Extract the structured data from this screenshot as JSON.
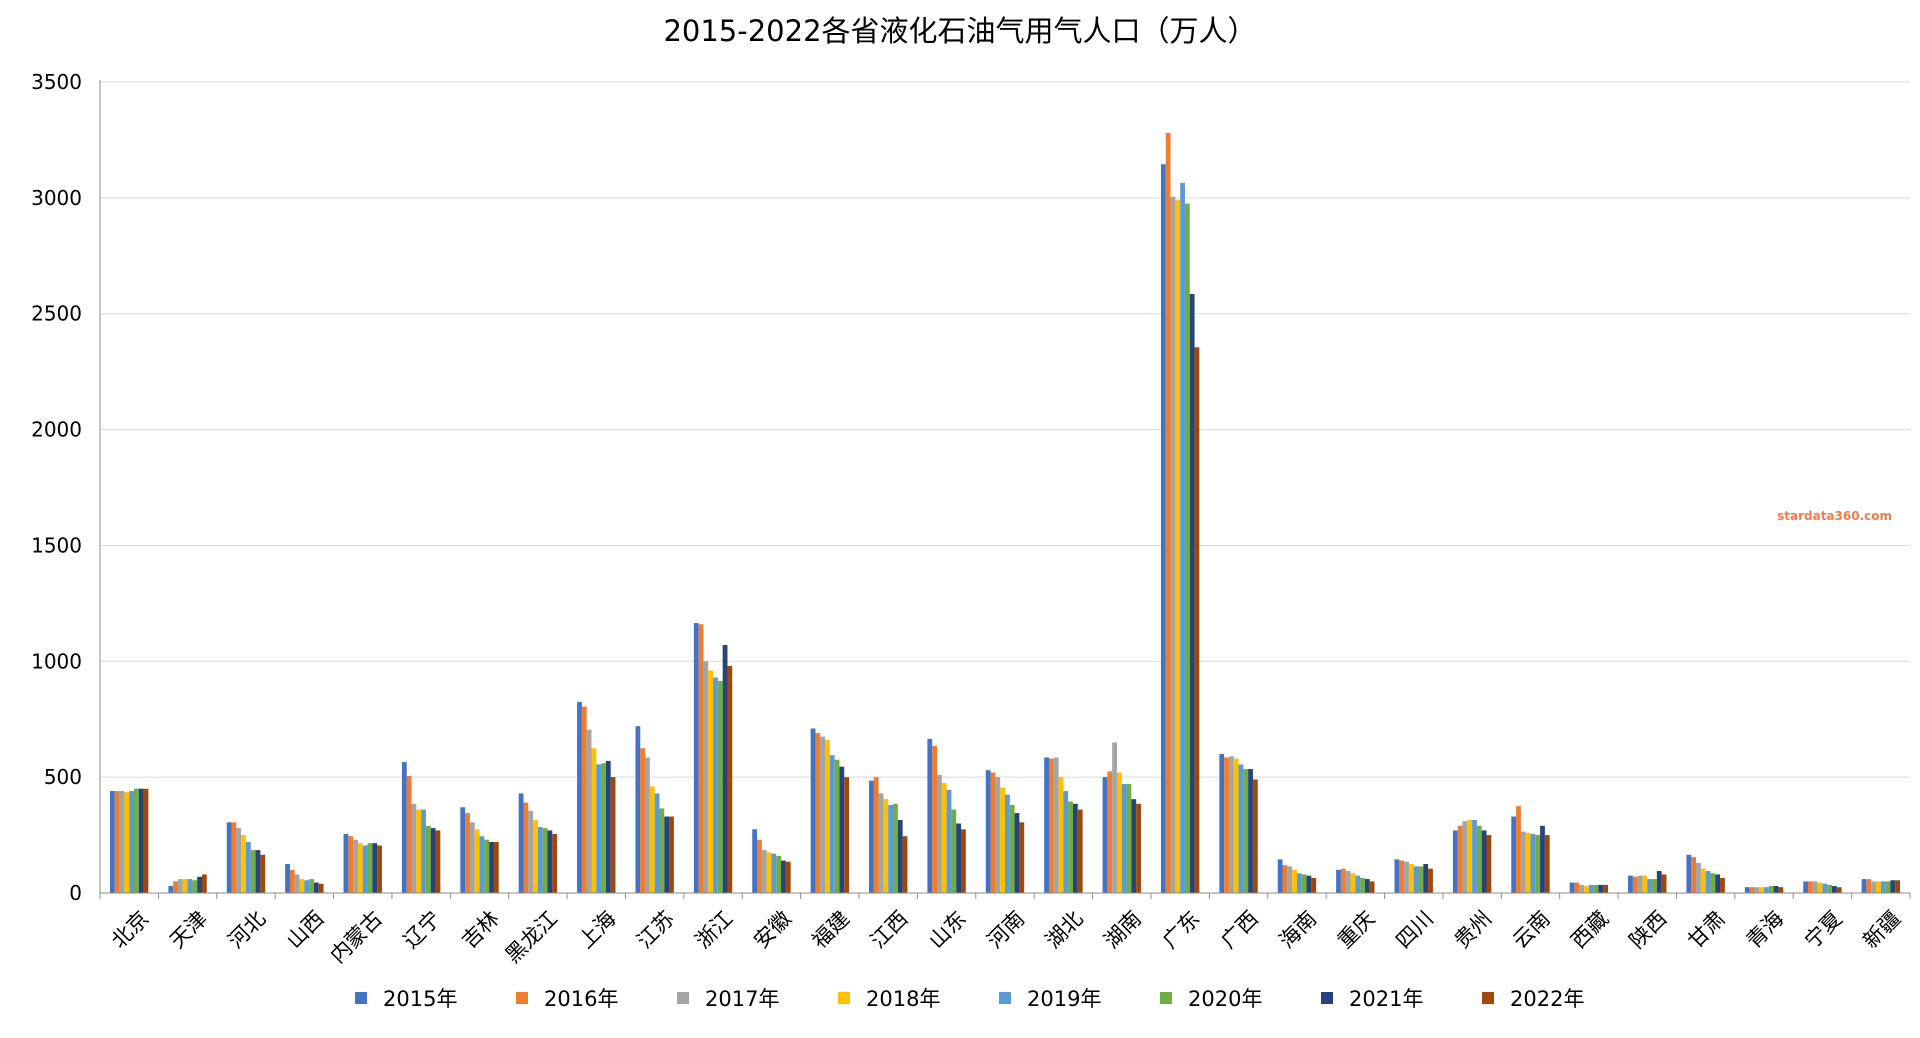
{
  "chart_data": {
    "type": "bar",
    "title": "2015-2022各省液化石油气用气人口（万人）",
    "xlabel": "",
    "ylabel": "",
    "ylim": [
      0,
      3500
    ],
    "yticks": [
      0,
      500,
      1000,
      1500,
      2000,
      2500,
      3000,
      3500
    ],
    "grid": true,
    "legend_position": "bottom",
    "categories": [
      "北京",
      "天津",
      "河北",
      "山西",
      "内蒙古",
      "辽宁",
      "吉林",
      "黑龙江",
      "上海",
      "江苏",
      "浙江",
      "安徽",
      "福建",
      "江西",
      "山东",
      "河南",
      "湖北",
      "湖南",
      "广东",
      "广西",
      "海南",
      "重庆",
      "四川",
      "贵州",
      "云南",
      "西藏",
      "陕西",
      "甘肃",
      "青海",
      "宁夏",
      "新疆"
    ],
    "series": [
      {
        "name": "2015年",
        "color": "#4472c4",
        "values": [
          440,
          30,
          305,
          125,
          255,
          565,
          370,
          430,
          825,
          720,
          1165,
          275,
          710,
          485,
          665,
          530,
          585,
          500,
          3145,
          600,
          145,
          100,
          145,
          270,
          330,
          45,
          75,
          165,
          25,
          50,
          60
        ]
      },
      {
        "name": "2016年",
        "color": "#ed7d31",
        "values": [
          440,
          50,
          305,
          100,
          245,
          505,
          345,
          390,
          805,
          625,
          1160,
          230,
          690,
          500,
          635,
          520,
          580,
          525,
          3280,
          585,
          120,
          105,
          140,
          290,
          375,
          45,
          70,
          155,
          25,
          50,
          60
        ]
      },
      {
        "name": "2017年",
        "color": "#a5a5a5",
        "values": [
          440,
          60,
          280,
          80,
          230,
          385,
          305,
          355,
          705,
          585,
          1000,
          185,
          675,
          430,
          510,
          500,
          585,
          650,
          3005,
          590,
          115,
          95,
          135,
          310,
          265,
          35,
          75,
          130,
          25,
          50,
          50
        ]
      },
      {
        "name": "2018年",
        "color": "#ffc000",
        "values": [
          435,
          60,
          250,
          60,
          215,
          360,
          275,
          315,
          625,
          460,
          960,
          175,
          660,
          405,
          475,
          455,
          500,
          520,
          2990,
          580,
          100,
          85,
          125,
          315,
          260,
          30,
          75,
          105,
          25,
          45,
          50
        ]
      },
      {
        "name": "2019年",
        "color": "#5b9bd5",
        "values": [
          440,
          60,
          220,
          55,
          205,
          360,
          245,
          285,
          555,
          430,
          930,
          170,
          595,
          380,
          445,
          425,
          440,
          470,
          3065,
          555,
          85,
          75,
          115,
          315,
          255,
          35,
          60,
          95,
          25,
          40,
          50
        ]
      },
      {
        "name": "2020年",
        "color": "#70ad47",
        "values": [
          450,
          55,
          185,
          60,
          215,
          290,
          230,
          280,
          560,
          365,
          915,
          160,
          575,
          385,
          360,
          380,
          395,
          470,
          2975,
          535,
          80,
          65,
          115,
          290,
          250,
          35,
          60,
          85,
          30,
          35,
          50
        ]
      },
      {
        "name": "2021年",
        "color": "#264478",
        "values": [
          450,
          70,
          185,
          45,
          215,
          280,
          220,
          270,
          570,
          330,
          1070,
          140,
          545,
          315,
          300,
          345,
          385,
          405,
          2585,
          535,
          75,
          60,
          125,
          270,
          290,
          35,
          95,
          80,
          30,
          30,
          55
        ]
      },
      {
        "name": "2022年",
        "color": "#9e480e",
        "values": [
          450,
          80,
          165,
          40,
          205,
          270,
          220,
          255,
          500,
          330,
          980,
          135,
          500,
          245,
          275,
          305,
          360,
          385,
          2355,
          490,
          65,
          50,
          105,
          250,
          250,
          35,
          80,
          65,
          25,
          25,
          55
        ]
      }
    ]
  },
  "watermark": "stardata360.com"
}
